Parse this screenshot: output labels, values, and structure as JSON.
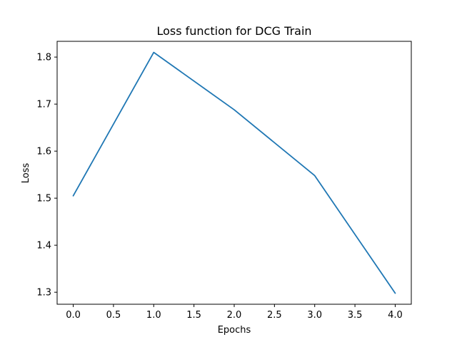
{
  "chart_data": {
    "type": "line",
    "title": "Loss function for DCG Train",
    "xlabel": "Epochs",
    "ylabel": "Loss",
    "x": [
      0,
      1,
      2,
      3,
      4
    ],
    "series": [
      {
        "values": [
          1.505,
          1.81,
          1.688,
          1.548,
          1.298
        ],
        "color": "#1f77b4"
      }
    ],
    "xlim": [
      -0.2,
      4.2
    ],
    "ylim": [
      1.2745,
      1.8335
    ],
    "xticks": [
      "0.0",
      "0.5",
      "1.0",
      "1.5",
      "2.0",
      "2.5",
      "3.0",
      "3.5",
      "4.0"
    ],
    "yticks": [
      "1.3",
      "1.4",
      "1.5",
      "1.6",
      "1.7",
      "1.8"
    ],
    "grid": false,
    "legend": "none"
  }
}
